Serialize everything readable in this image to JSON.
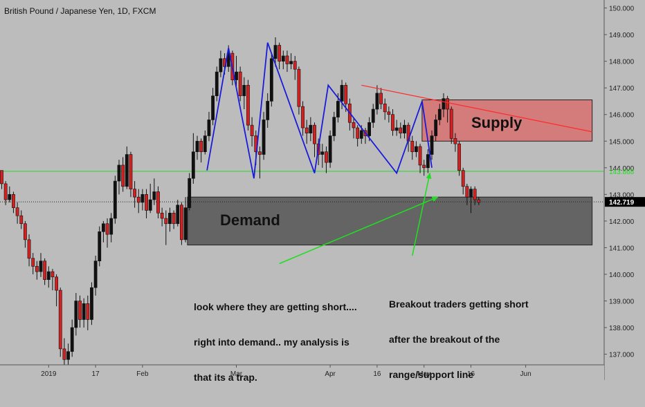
{
  "chart_title": "British Pound / Japanese Yen, 1D, FXCM",
  "colors": {
    "background": "#bcbcbc",
    "up_candle": "#111111",
    "down_candle": "#d32020",
    "pattern_line": "#1a1adb",
    "horizontal_line": "#22dd22",
    "arrow": "#22dd22",
    "trendline": "#ff2a2a",
    "supply_zone": "#d96a6a",
    "demand_zone": "#5a5a5a",
    "price_tag": "#000000",
    "level_tag": "#22dd22"
  },
  "chart_data": {
    "type": "candlestick",
    "title": "British Pound / Japanese Yen, 1D, FXCM",
    "ylim": [
      136.6,
      150.3
    ],
    "y_ticks": [
      {
        "value": 137,
        "label": "137.000"
      },
      {
        "value": 138,
        "label": "138.000"
      },
      {
        "value": 139,
        "label": "139.000"
      },
      {
        "value": 140,
        "label": "140.000"
      },
      {
        "value": 141,
        "label": "141.000"
      },
      {
        "value": 142,
        "label": "142.000"
      },
      {
        "value": 143,
        "label": "143.000"
      },
      {
        "value": 144,
        "label": "144.000"
      },
      {
        "value": 145,
        "label": "145.000"
      },
      {
        "value": 146,
        "label": "146.000"
      },
      {
        "value": 147,
        "label": "147.000"
      },
      {
        "value": 148,
        "label": "148.000"
      },
      {
        "value": 149,
        "label": "149.000"
      },
      {
        "value": 150,
        "label": "150.000"
      }
    ],
    "x_ticks": [
      {
        "bar": 12,
        "label": "2019"
      },
      {
        "bar": 24,
        "label": "17"
      },
      {
        "bar": 36,
        "label": "Feb"
      },
      {
        "bar": 60,
        "label": "Mar"
      },
      {
        "bar": 84,
        "label": "Apr"
      },
      {
        "bar": 96,
        "label": "16"
      },
      {
        "bar": 108,
        "label": "May"
      },
      {
        "bar": 120,
        "label": "16"
      },
      {
        "bar": 134,
        "label": "Jun"
      }
    ],
    "bar_count": 152,
    "candles": [
      [
        143.9,
        143.4,
        143.9,
        143.2
      ],
      [
        143.4,
        142.8,
        143.5,
        142.6
      ],
      [
        142.8,
        143.0,
        143.3,
        142.7
      ],
      [
        143.0,
        142.5,
        143.1,
        142.3
      ],
      [
        142.5,
        142.2,
        142.7,
        141.9
      ],
      [
        142.2,
        141.9,
        142.4,
        141.7
      ],
      [
        141.9,
        141.3,
        142.0,
        141.0
      ],
      [
        141.3,
        140.6,
        141.5,
        140.3
      ],
      [
        140.6,
        140.3,
        140.8,
        140.0
      ],
      [
        140.3,
        140.1,
        140.5,
        139.8
      ],
      [
        140.1,
        140.5,
        140.8,
        139.9
      ],
      [
        140.5,
        139.8,
        140.6,
        139.6
      ],
      [
        139.8,
        140.1,
        140.3,
        139.5
      ],
      [
        140.1,
        139.9,
        140.2,
        139.4
      ],
      [
        139.9,
        139.4,
        140.0,
        138.8
      ],
      [
        139.4,
        137.2,
        139.5,
        136.9
      ],
      [
        137.2,
        136.8,
        137.6,
        136.5
      ],
      [
        136.8,
        137.1,
        137.4,
        136.6
      ],
      [
        137.1,
        138.0,
        138.3,
        136.9
      ],
      [
        138.0,
        139.0,
        139.3,
        137.7
      ],
      [
        139.0,
        138.3,
        139.2,
        138.0
      ],
      [
        138.3,
        138.9,
        139.1,
        138.0
      ],
      [
        138.9,
        138.3,
        139.2,
        137.9
      ],
      [
        138.3,
        139.5,
        139.7,
        138.1
      ],
      [
        139.5,
        140.5,
        140.7,
        139.2
      ],
      [
        140.5,
        141.6,
        141.8,
        140.3
      ],
      [
        141.6,
        141.9,
        142.0,
        141.2
      ],
      [
        141.9,
        141.5,
        142.1,
        141.0
      ],
      [
        141.5,
        142.1,
        142.3,
        141.2
      ],
      [
        142.1,
        143.5,
        143.7,
        141.9
      ],
      [
        143.5,
        144.1,
        144.3,
        143.0
      ],
      [
        144.1,
        143.3,
        144.4,
        143.1
      ],
      [
        143.3,
        144.5,
        144.8,
        143.2
      ],
      [
        144.5,
        143.2,
        144.6,
        142.9
      ],
      [
        143.2,
        142.9,
        143.5,
        142.5
      ],
      [
        142.9,
        142.7,
        143.2,
        142.3
      ],
      [
        142.7,
        143.0,
        143.2,
        142.4
      ],
      [
        143.0,
        142.4,
        143.2,
        142.1
      ],
      [
        142.4,
        142.8,
        143.4,
        142.3
      ],
      [
        142.8,
        143.1,
        143.6,
        142.6
      ],
      [
        143.1,
        142.3,
        143.3,
        142.1
      ],
      [
        142.3,
        142.1,
        142.5,
        141.8
      ],
      [
        142.1,
        141.9,
        142.4,
        141.1
      ],
      [
        141.9,
        142.3,
        142.5,
        141.6
      ],
      [
        142.3,
        141.9,
        142.4,
        141.7
      ],
      [
        141.9,
        142.6,
        142.8,
        141.8
      ],
      [
        142.6,
        141.3,
        142.7,
        141.1
      ],
      [
        141.3,
        142.5,
        142.9,
        141.2
      ],
      [
        142.5,
        143.6,
        143.8,
        142.4
      ],
      [
        143.6,
        144.6,
        145.3,
        143.4
      ],
      [
        144.6,
        145.0,
        145.2,
        144.3
      ],
      [
        145.0,
        144.6,
        145.1,
        144.2
      ],
      [
        144.6,
        145.2,
        145.4,
        144.5
      ],
      [
        145.2,
        145.8,
        146.1,
        145.0
      ],
      [
        145.8,
        146.7,
        147.0,
        145.6
      ],
      [
        146.7,
        147.6,
        147.8,
        146.5
      ],
      [
        147.6,
        148.1,
        148.4,
        147.4
      ],
      [
        148.1,
        147.8,
        148.3,
        147.5
      ],
      [
        147.8,
        148.3,
        148.6,
        147.6
      ],
      [
        148.3,
        147.3,
        148.4,
        147.1
      ],
      [
        147.3,
        147.6,
        148.2,
        147.0
      ],
      [
        147.6,
        146.7,
        147.8,
        146.5
      ],
      [
        146.7,
        147.1,
        147.4,
        146.2
      ],
      [
        147.1,
        145.6,
        147.3,
        145.4
      ],
      [
        145.6,
        145.2,
        145.9,
        144.8
      ],
      [
        145.2,
        144.6,
        145.4,
        144.1
      ],
      [
        144.6,
        144.5,
        144.8,
        143.6
      ],
      [
        144.5,
        145.8,
        146.1,
        144.3
      ],
      [
        145.8,
        146.5,
        146.8,
        145.5
      ],
      [
        146.5,
        148.1,
        148.3,
        146.3
      ],
      [
        148.1,
        148.6,
        148.9,
        147.8
      ],
      [
        148.6,
        148.0,
        148.7,
        147.7
      ],
      [
        148.0,
        148.2,
        148.4,
        147.7
      ],
      [
        148.2,
        147.9,
        148.4,
        147.6
      ],
      [
        147.9,
        148.0,
        148.3,
        147.7
      ],
      [
        148.0,
        147.7,
        148.2,
        147.3
      ],
      [
        147.7,
        146.3,
        147.8,
        146.0
      ],
      [
        146.3,
        145.5,
        146.5,
        145.2
      ],
      [
        145.5,
        145.3,
        145.8,
        144.9
      ],
      [
        145.3,
        145.6,
        145.9,
        145.0
      ],
      [
        145.6,
        144.9,
        145.7,
        144.4
      ],
      [
        144.9,
        144.5,
        145.1,
        144.1
      ],
      [
        144.5,
        144.6,
        144.9,
        144.0
      ],
      [
        144.6,
        144.2,
        144.8,
        143.8
      ],
      [
        144.2,
        145.2,
        145.4,
        144.0
      ],
      [
        145.2,
        145.9,
        146.1,
        145.0
      ],
      [
        145.9,
        146.5,
        146.8,
        145.7
      ],
      [
        146.5,
        147.1,
        147.3,
        146.2
      ],
      [
        147.1,
        146.4,
        147.2,
        146.1
      ],
      [
        146.4,
        145.7,
        146.6,
        145.4
      ],
      [
        145.7,
        145.5,
        145.9,
        145.1
      ],
      [
        145.5,
        145.1,
        145.6,
        144.8
      ],
      [
        145.1,
        145.4,
        145.6,
        144.9
      ],
      [
        145.4,
        145.2,
        145.5,
        144.9
      ],
      [
        145.2,
        145.7,
        145.9,
        145.0
      ],
      [
        145.7,
        146.2,
        146.4,
        145.5
      ],
      [
        146.2,
        146.8,
        147.1,
        146.0
      ],
      [
        146.8,
        146.4,
        147.0,
        146.2
      ],
      [
        146.4,
        146.1,
        146.6,
        145.8
      ],
      [
        146.1,
        146.0,
        146.3,
        145.7
      ],
      [
        146.0,
        145.4,
        146.2,
        145.2
      ],
      [
        145.4,
        145.5,
        145.8,
        145.2
      ],
      [
        145.5,
        145.3,
        145.7,
        145.1
      ],
      [
        145.3,
        145.6,
        145.8,
        145.1
      ],
      [
        145.6,
        145.0,
        145.7,
        144.6
      ],
      [
        145.0,
        144.6,
        145.2,
        144.3
      ],
      [
        144.6,
        144.8,
        145.0,
        144.4
      ],
      [
        144.8,
        144.1,
        144.9,
        143.8
      ],
      [
        144.1,
        144.0,
        144.3,
        143.7
      ],
      [
        144.0,
        144.5,
        144.7,
        143.8
      ],
      [
        144.5,
        145.2,
        145.4,
        144.3
      ],
      [
        145.2,
        145.8,
        146.0,
        145.0
      ],
      [
        145.8,
        146.2,
        146.4,
        145.6
      ],
      [
        146.2,
        146.6,
        146.8,
        145.9
      ],
      [
        146.6,
        146.2,
        146.7,
        145.7
      ],
      [
        146.2,
        145.1,
        146.3,
        144.9
      ],
      [
        145.1,
        144.9,
        145.3,
        144.6
      ],
      [
        144.9,
        143.9,
        145.0,
        143.7
      ],
      [
        143.9,
        143.3,
        144.0,
        143.0
      ],
      [
        143.3,
        142.9,
        143.4,
        142.6
      ],
      [
        142.9,
        143.2,
        143.3,
        142.3
      ],
      [
        143.2,
        142.8,
        143.3,
        142.6
      ],
      [
        142.8,
        142.7,
        142.9,
        142.6
      ]
    ],
    "y_axis_labels": [
      {
        "value": 143.868,
        "label": "143.868",
        "kind": "level"
      },
      {
        "value": 142.719,
        "label": "142.719",
        "kind": "price"
      }
    ],
    "horizontal_lines": [
      {
        "value": 143.868
      }
    ],
    "price_line": {
      "value": 142.719
    },
    "zones": [
      {
        "name": "supply",
        "label": "Supply",
        "bar_from": 107.5,
        "bar_to": 151,
        "top": 146.55,
        "bottom": 145.0
      },
      {
        "name": "demand",
        "label": "Demand",
        "bar_from": 47.5,
        "bar_to": 151,
        "top": 142.9,
        "bottom": 141.1
      }
    ],
    "trendline": {
      "from": {
        "bar": 92,
        "value": 147.1
      },
      "to": {
        "bar": 151,
        "value": 145.35
      }
    },
    "pattern_line": [
      {
        "bar": 52.5,
        "value": 143.9
      },
      {
        "bar": 58,
        "value": 148.5
      },
      {
        "bar": 64.5,
        "value": 143.6
      },
      {
        "bar": 68,
        "value": 148.7
      },
      {
        "bar": 80,
        "value": 143.8
      },
      {
        "bar": 83.5,
        "value": 147.1
      },
      {
        "bar": 101,
        "value": 143.8
      },
      {
        "bar": 107.5,
        "value": 146.5
      },
      {
        "bar": 110,
        "value": 144.0
      }
    ],
    "arrows": [
      {
        "from": {
          "bar": 71,
          "value": 140.4
        },
        "to": {
          "bar": 111.5,
          "value": 142.9
        }
      },
      {
        "from": {
          "bar": 105,
          "value": 140.7
        },
        "to": {
          "bar": 109.5,
          "value": 143.8
        }
      }
    ]
  },
  "annotations": {
    "left_note_lines": [
      "look where they are getting short....",
      "right into demand.. my analysis is",
      "that its a trap."
    ],
    "right_note_lines": [
      "Breakout traders getting short",
      "after the breakout of the",
      "range/support line"
    ]
  }
}
